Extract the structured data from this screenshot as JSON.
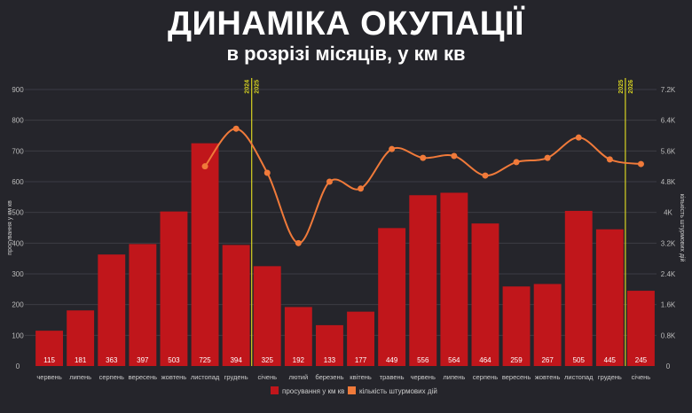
{
  "chart_data": {
    "type": "bar+line",
    "title": "ДИНАМІКА ОКУПАЦІЇ",
    "subtitle": "в розрізі місяців, у км кв",
    "categories": [
      "червень",
      "липень",
      "серпень",
      "вересень",
      "жовтень",
      "листопад",
      "грудень",
      "січень",
      "лютий",
      "березень",
      "квітень",
      "травень",
      "червень",
      "липень",
      "серпень",
      "вересень",
      "жовтень",
      "листопад",
      "грудень",
      "січень"
    ],
    "series": [
      {
        "name": "просування у км кв",
        "type": "bar",
        "axis": "left",
        "color": "#c0161b",
        "values": [
          115,
          181,
          363,
          397,
          503,
          725,
          394,
          325,
          192,
          133,
          177,
          449,
          556,
          564,
          464,
          259,
          267,
          505,
          445,
          245
        ]
      },
      {
        "name": "кількість штурмових дій",
        "type": "line",
        "axis": "right",
        "color": "#f07a3a",
        "values": [
          null,
          null,
          null,
          null,
          null,
          5200,
          6180,
          5030,
          3200,
          4800,
          4620,
          5650,
          5420,
          5470,
          4960,
          5310,
          5420,
          5950,
          5380,
          5260
        ]
      }
    ],
    "ylabel_left": "просування у км кв",
    "ylabel_right": "кількість штурмових дій",
    "ylim_left": [
      0,
      900
    ],
    "yticks_left": [
      "0",
      "100",
      "200",
      "300",
      "400",
      "500",
      "600",
      "700",
      "800",
      "900"
    ],
    "ylim_right": [
      0,
      7200
    ],
    "yticks_right": [
      "0",
      "0.8K",
      "1.6K",
      "2.4K",
      "3.2K",
      "4K",
      "4.8K",
      "5.6K",
      "6.4K",
      "7.2K"
    ],
    "year_markers": [
      {
        "after_index": 6,
        "left": "2024",
        "right": "2025"
      },
      {
        "after_index": 18,
        "left": "2025",
        "right": "2026"
      }
    ],
    "marker_color": "#d7d321",
    "grid": true,
    "legend": "bottom"
  }
}
